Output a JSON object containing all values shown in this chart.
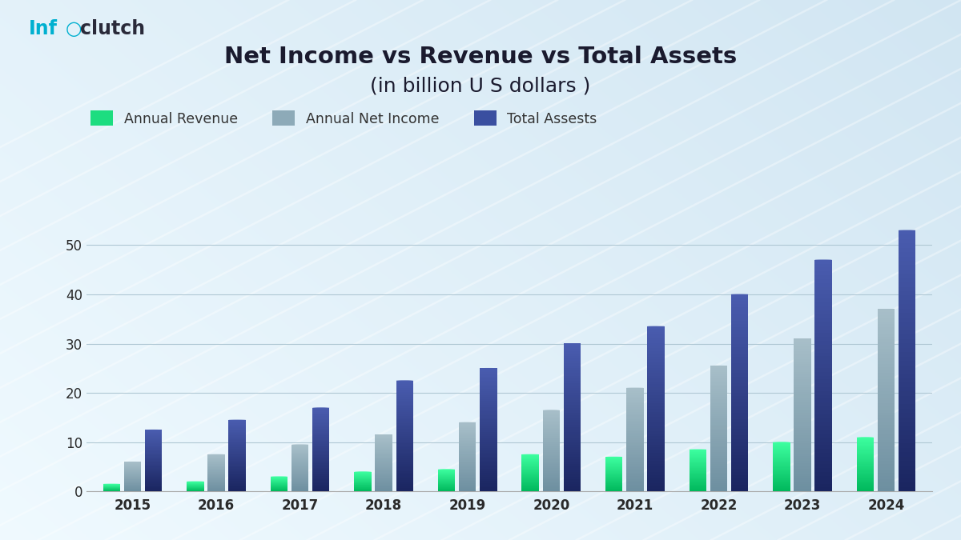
{
  "title_line1": "Net Income vs Revenue vs Total Assets",
  "title_line2": "(in billion U S dollars )",
  "years": [
    2015,
    2016,
    2017,
    2018,
    2019,
    2020,
    2021,
    2022,
    2023,
    2024
  ],
  "annual_revenue": [
    1.5,
    2.0,
    3.0,
    4.0,
    4.5,
    7.5,
    7.0,
    8.5,
    10.0,
    11.0
  ],
  "annual_net_income": [
    6.0,
    7.5,
    9.5,
    11.5,
    14.0,
    16.5,
    21.0,
    25.5,
    31.0,
    37.0
  ],
  "total_assets": [
    12.5,
    14.5,
    17.0,
    22.5,
    25.0,
    30.0,
    33.5,
    40.0,
    47.0,
    53.0
  ],
  "ylim": [
    0,
    57
  ],
  "yticks": [
    0,
    10,
    20,
    30,
    40,
    50
  ],
  "bar_width": 0.25,
  "legend_labels": [
    "Annual Revenue",
    "Annual Net Income",
    "Total Assests"
  ],
  "rev_color_top": "#3dffa0",
  "rev_color_bot": "#00b85c",
  "ni_color_top": "#a8bfc9",
  "ni_color_bot": "#6d8fa0",
  "ta_color_top": "#4a5db0",
  "ta_color_bot": "#1a2560",
  "bg_left": "#e8f3f8",
  "bg_right": "#c5dbe8",
  "grid_color": "#b0c8d4",
  "title_color": "#1a1a2e",
  "tick_color": "#2a2a2a",
  "logo_cyan": "#00b0d0",
  "logo_dark": "#2a2a3a"
}
